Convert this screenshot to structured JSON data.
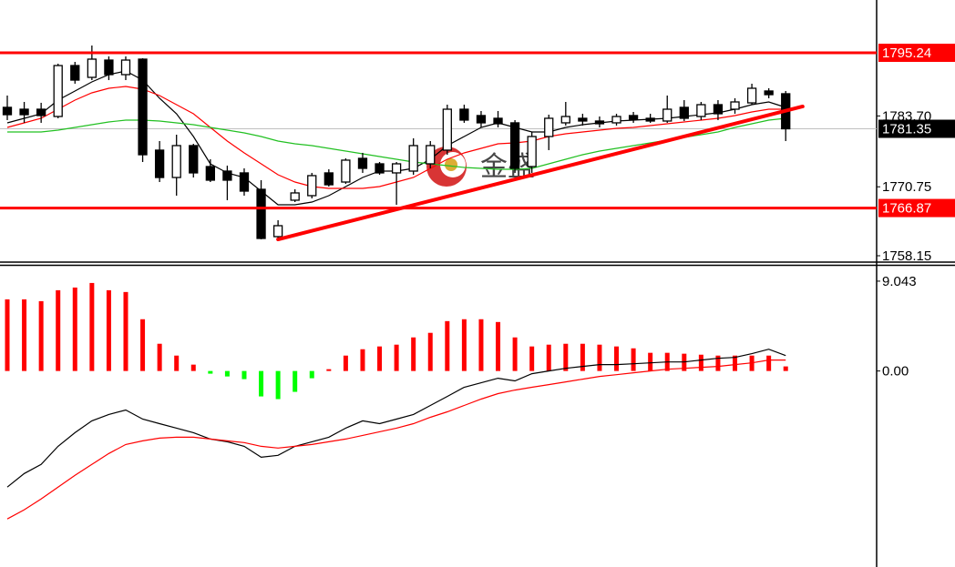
{
  "chart_data": [
    {
      "type": "candlestick",
      "watermark": "金盛",
      "ylim": [
        1757.15,
        1804.89
      ],
      "yticks": [
        1758.15,
        1770.75,
        {
          "value": 1783.7,
          "label": "1783.70"
        }
      ],
      "levels": [
        1795.24,
        1766.87
      ],
      "level_color": "#ff0000",
      "current_price": 1781.35,
      "up_color": "#ffffff",
      "down_color": "#000000",
      "open": [
        1785.27,
        1784.93,
        1784.93,
        1783.6,
        1792.91,
        1790.75,
        1793.91,
        1791.25,
        1794.08,
        1777.45,
        1772.45,
        1778.28,
        1774.45,
        1773.62,
        1773.29,
        1770.29,
        1761.64,
        1768.3,
        1769.13,
        1773.29,
        1771.62,
        1775.95,
        1774.95,
        1773.29,
        1773.62,
        1774.95,
        1777.45,
        1784.93,
        1783.77,
        1783.27,
        1782.44,
        1774.45,
        1779.94,
        1782.44,
        1783.27,
        1782.77,
        1782.44,
        1783.77,
        1783.27,
        1782.77,
        1785.27,
        1783.6,
        1785.76,
        1784.93,
        1786.09,
        1788.26,
        1787.76
      ],
      "high": [
        1787.43,
        1786.26,
        1786.1,
        1793.25,
        1793.58,
        1796.57,
        1794.58,
        1794.58,
        1794.24,
        1779.11,
        1780.27,
        1778.61,
        1775.78,
        1774.62,
        1774.12,
        1771.96,
        1764.64,
        1770.29,
        1773.29,
        1773.95,
        1775.95,
        1776.95,
        1775.28,
        1775.28,
        1779.61,
        1779.11,
        1785.76,
        1785.76,
        1784.6,
        1784.6,
        1782.94,
        1780.77,
        1783.93,
        1786.26,
        1784.1,
        1783.6,
        1784.1,
        1784.43,
        1784.1,
        1787.43,
        1786.59,
        1786.26,
        1786.59,
        1786.93,
        1789.59,
        1788.76,
        1788.26
      ],
      "low": [
        1782.94,
        1782.44,
        1782.44,
        1783.27,
        1789.59,
        1790.25,
        1790.25,
        1790.25,
        1775.28,
        1771.62,
        1769.13,
        1772.45,
        1771.62,
        1768.3,
        1769.13,
        1761.14,
        1761.31,
        1767.96,
        1768.63,
        1770.79,
        1771.29,
        1773.29,
        1772.95,
        1767.46,
        1772.95,
        1774.12,
        1776.61,
        1782.44,
        1781.6,
        1781.6,
        1773.29,
        1773.29,
        1777.45,
        1781.94,
        1781.94,
        1781.6,
        1781.94,
        1782.44,
        1782.44,
        1782.44,
        1782.77,
        1782.94,
        1782.94,
        1784.1,
        1785.76,
        1786.93,
        1779.11
      ],
      "close": [
        1783.93,
        1783.93,
        1783.77,
        1792.91,
        1790.25,
        1794.08,
        1791.25,
        1793.91,
        1776.61,
        1772.45,
        1778.28,
        1773.29,
        1771.96,
        1771.96,
        1769.96,
        1761.31,
        1763.64,
        1769.63,
        1772.79,
        1771.12,
        1775.62,
        1774.12,
        1773.29,
        1774.95,
        1778.28,
        1778.28,
        1784.93,
        1782.94,
        1782.44,
        1782.27,
        1774.12,
        1779.94,
        1783.27,
        1783.6,
        1782.77,
        1782.27,
        1783.6,
        1783.1,
        1782.77,
        1784.93,
        1783.27,
        1785.76,
        1784.1,
        1786.26,
        1788.76,
        1787.59,
        1781.35
      ],
      "series": [
        {
          "color": "#000000",
          "values": [
            1782.44,
            1783.27,
            1784.1,
            1786.59,
            1788.26,
            1789.92,
            1791.25,
            1791.92,
            1790.25,
            1786.93,
            1784.1,
            1779.94,
            1774.95,
            1773.29,
            1772.45,
            1769.96,
            1767.46,
            1767.46,
            1767.96,
            1769.13,
            1770.79,
            1772.45,
            1773.62,
            1773.62,
            1774.12,
            1775.78,
            1778.28,
            1779.94,
            1781.6,
            1782.44,
            1781.6,
            1780.77,
            1780.77,
            1781.6,
            1782.1,
            1782.44,
            1782.77,
            1782.94,
            1783.1,
            1783.27,
            1783.6,
            1783.93,
            1784.27,
            1784.93,
            1785.76,
            1786.26,
            1785.26
          ]
        },
        {
          "color": "#ff0000",
          "values": [
            1781.6,
            1782.44,
            1783.27,
            1784.93,
            1786.59,
            1787.92,
            1788.76,
            1789.09,
            1788.59,
            1787.43,
            1785.76,
            1784.1,
            1781.6,
            1779.11,
            1776.95,
            1774.95,
            1772.95,
            1771.62,
            1770.79,
            1770.46,
            1770.46,
            1770.46,
            1770.79,
            1771.62,
            1772.45,
            1774.12,
            1775.78,
            1776.95,
            1777.78,
            1778.61,
            1778.78,
            1779.11,
            1779.94,
            1780.44,
            1780.77,
            1781.1,
            1781.44,
            1781.6,
            1781.94,
            1782.27,
            1782.6,
            1782.94,
            1783.27,
            1783.77,
            1784.43,
            1784.93,
            1784.93
          ]
        },
        {
          "color": "#22c022",
          "values": [
            1780.77,
            1780.77,
            1780.77,
            1781.1,
            1781.6,
            1782.1,
            1782.6,
            1782.94,
            1782.94,
            1782.77,
            1782.44,
            1782.1,
            1781.6,
            1781.1,
            1780.61,
            1779.94,
            1779.11,
            1778.61,
            1778.28,
            1777.78,
            1777.28,
            1776.78,
            1776.28,
            1775.78,
            1775.28,
            1774.95,
            1774.62,
            1774.28,
            1774.12,
            1773.95,
            1773.95,
            1774.12,
            1774.95,
            1775.78,
            1776.61,
            1777.28,
            1777.78,
            1778.28,
            1778.78,
            1779.28,
            1779.77,
            1780.27,
            1780.77,
            1781.6,
            1782.27,
            1782.94,
            1783.27
          ]
        }
      ],
      "trendline": {
        "start_index": 16,
        "start_value": 1761.14,
        "end_index": 47,
        "end_value": 1785.43,
        "color": "#ff0000"
      }
    },
    {
      "type": "macd",
      "ylim": [
        -19.73,
        10.41
      ],
      "yticks": [
        9.043,
        {
          "value": 0,
          "label": "0.00"
        }
      ],
      "up_color": "#ff0000",
      "down_color": "#00ff00",
      "values": [
        7.21,
        7.21,
        7.03,
        8.13,
        8.4,
        8.86,
        8.13,
        7.95,
        5.21,
        2.74,
        1.55,
        0.64,
        -0.27,
        -0.55,
        -0.82,
        -2.56,
        -2.83,
        -2.1,
        -0.73,
        0.18,
        1.55,
        2.19,
        2.47,
        2.65,
        3.38,
        3.84,
        5.02,
        5.21,
        5.21,
        4.93,
        3.38,
        2.47,
        2.65,
        2.74,
        2.74,
        2.65,
        2.47,
        2.28,
        1.83,
        1.83,
        1.74,
        1.64,
        1.55,
        1.55,
        1.55,
        1.55,
        0.46
      ],
      "series": [
        {
          "color": "#000000",
          "values": [
            -11.69,
            -10.32,
            -9.41,
            -7.58,
            -6.21,
            -5.02,
            -4.38,
            -3.93,
            -4.84,
            -5.3,
            -5.75,
            -6.21,
            -6.85,
            -7.12,
            -7.58,
            -8.68,
            -8.49,
            -7.58,
            -7.12,
            -6.67,
            -5.75,
            -5.02,
            -5.3,
            -4.84,
            -4.38,
            -3.47,
            -2.56,
            -1.64,
            -1.19,
            -0.73,
            -1.0,
            -0.27,
            0,
            0.27,
            0.46,
            0.64,
            0.64,
            0.73,
            0.82,
            0.91,
            0.91,
            1.1,
            1.28,
            1.37,
            1.74,
            2.19,
            1.55
          ]
        },
        {
          "color": "#ff0000",
          "values": [
            -14.89,
            -13.97,
            -12.88,
            -11.69,
            -10.5,
            -9.41,
            -8.31,
            -7.4,
            -7.03,
            -6.76,
            -6.67,
            -6.67,
            -6.85,
            -7.03,
            -7.21,
            -7.58,
            -7.76,
            -7.58,
            -7.4,
            -7.12,
            -6.85,
            -6.48,
            -6.12,
            -5.75,
            -5.3,
            -4.66,
            -4.11,
            -3.47,
            -2.83,
            -2.28,
            -1.92,
            -1.64,
            -1.37,
            -1.1,
            -0.82,
            -0.55,
            -0.37,
            -0.18,
            0,
            0.18,
            0.27,
            0.37,
            0.46,
            0.64,
            0.82,
            1.1,
            1.1
          ]
        }
      ]
    }
  ]
}
